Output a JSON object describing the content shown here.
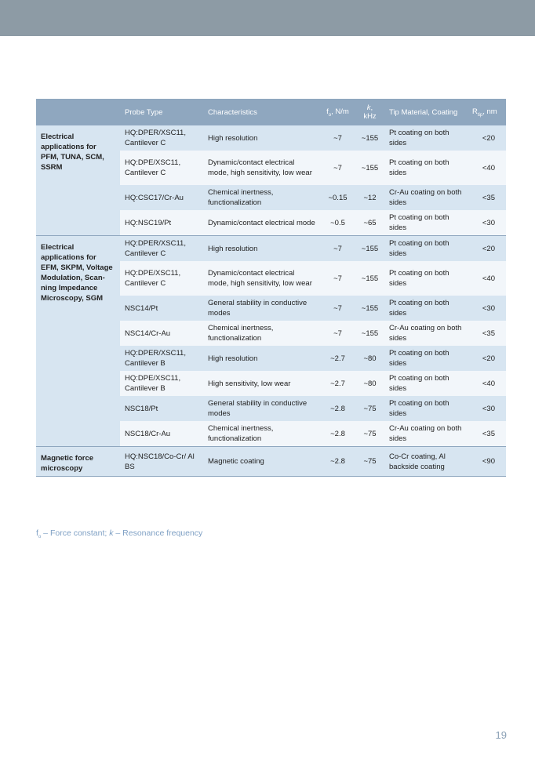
{
  "headers": {
    "group": "",
    "probe": "Probe Type",
    "char": "Characteristics",
    "fo": "f",
    "fo_sub": "o",
    "fo_unit": ", N/m",
    "k": "k",
    "k_unit": ", kHz",
    "tip": "Tip Material, Coating",
    "r": "R",
    "r_sub": "tip",
    "r_unit": ", nm"
  },
  "groups": [
    {
      "label": "Electrical applications for PFM, TUNA, SCM, SSRM",
      "rows": [
        {
          "probe": "HQ:DPER/XSC11, Cantilever C",
          "char": "High resolution",
          "fo": "~7",
          "k": "~155",
          "tip": "Pt coating on both sides",
          "r": "<20"
        },
        {
          "probe": "HQ:DPE/XSC11, Cantilever C",
          "char": "Dynamic/contact electrical mode, high sensitivity, low wear",
          "fo": "~7",
          "k": "~155",
          "tip": "Pt coating on both sides",
          "r": "<40"
        },
        {
          "probe": "HQ:CSC17/Cr-Au",
          "char": "Chemical inertness, functionalization",
          "fo": "~0.15",
          "k": "~12",
          "tip": "Cr-Au coating on both sides",
          "r": "<35"
        },
        {
          "probe": "HQ:NSC19/Pt",
          "char": "Dynamic/contact electrical mode",
          "fo": "~0.5",
          "k": "~65",
          "tip": "Pt coating on both sides",
          "r": "<30"
        }
      ]
    },
    {
      "label": "Electrical applications for EFM, SKPM, Voltage Modulation, Scan-ning Impedance Microscopy, SGM",
      "rows": [
        {
          "probe": "HQ:DPER/XSC11, Cantilever C",
          "char": "High resolution",
          "fo": "~7",
          "k": "~155",
          "tip": "Pt coating on both sides",
          "r": "<20"
        },
        {
          "probe": "HQ:DPE/XSC11, Cantilever C",
          "char": "Dynamic/contact electrical mode, high sensitivity, low wear",
          "fo": "~7",
          "k": "~155",
          "tip": "Pt coating on both sides",
          "r": "<40"
        },
        {
          "probe": "NSC14/Pt",
          "char": "General stability in conductive modes",
          "fo": "~7",
          "k": "~155",
          "tip": "Pt coating on both sides",
          "r": "<30"
        },
        {
          "probe": "NSC14/Cr-Au",
          "char": "Chemical inertness, functionalization",
          "fo": "~7",
          "k": "~155",
          "tip": "Cr-Au coating on both sides",
          "r": "<35"
        },
        {
          "probe": "HQ:DPER/XSC11, Cantilever B",
          "char": "High resolution",
          "fo": "~2.7",
          "k": "~80",
          "tip": "Pt coating on both sides",
          "r": "<20"
        },
        {
          "probe": "HQ:DPE/XSC11, Cantilever B",
          "char": "High sensitivity, low wear",
          "fo": "~2.7",
          "k": "~80",
          "tip": "Pt coating on both sides",
          "r": "<40"
        },
        {
          "probe": "NSC18/Pt",
          "char": "General stability in conductive modes",
          "fo": "~2.8",
          "k": "~75",
          "tip": "Pt coating on both sides",
          "r": "<30"
        },
        {
          "probe": "NSC18/Cr-Au",
          "char": "Chemical inertness, functionalization",
          "fo": "~2.8",
          "k": "~75",
          "tip": "Cr-Au coating on both sides",
          "r": "<35"
        }
      ]
    },
    {
      "label": "Magnetic force microscopy",
      "rows": [
        {
          "probe": "HQ:NSC18/Co-Cr/ Al BS",
          "char": "Magnetic coating",
          "fo": "~2.8",
          "k": "~75",
          "tip": "Co-Cr coating, Al backside coating",
          "r": "<90"
        }
      ]
    }
  ],
  "footnote": {
    "fo": "f",
    "fo_sub": "o",
    "text1": " – Force constant; ",
    "k": "k",
    "text2": " – Resonance frequency"
  },
  "page_number": "19"
}
